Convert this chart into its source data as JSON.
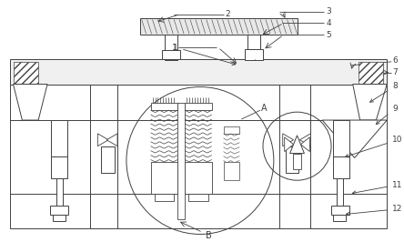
{
  "bg_color": "#ffffff",
  "line_color": "#404040",
  "fig_width": 4.44,
  "fig_height": 2.66,
  "dpi": 100,
  "label_fontsize": 6.5,
  "lw": 0.7
}
